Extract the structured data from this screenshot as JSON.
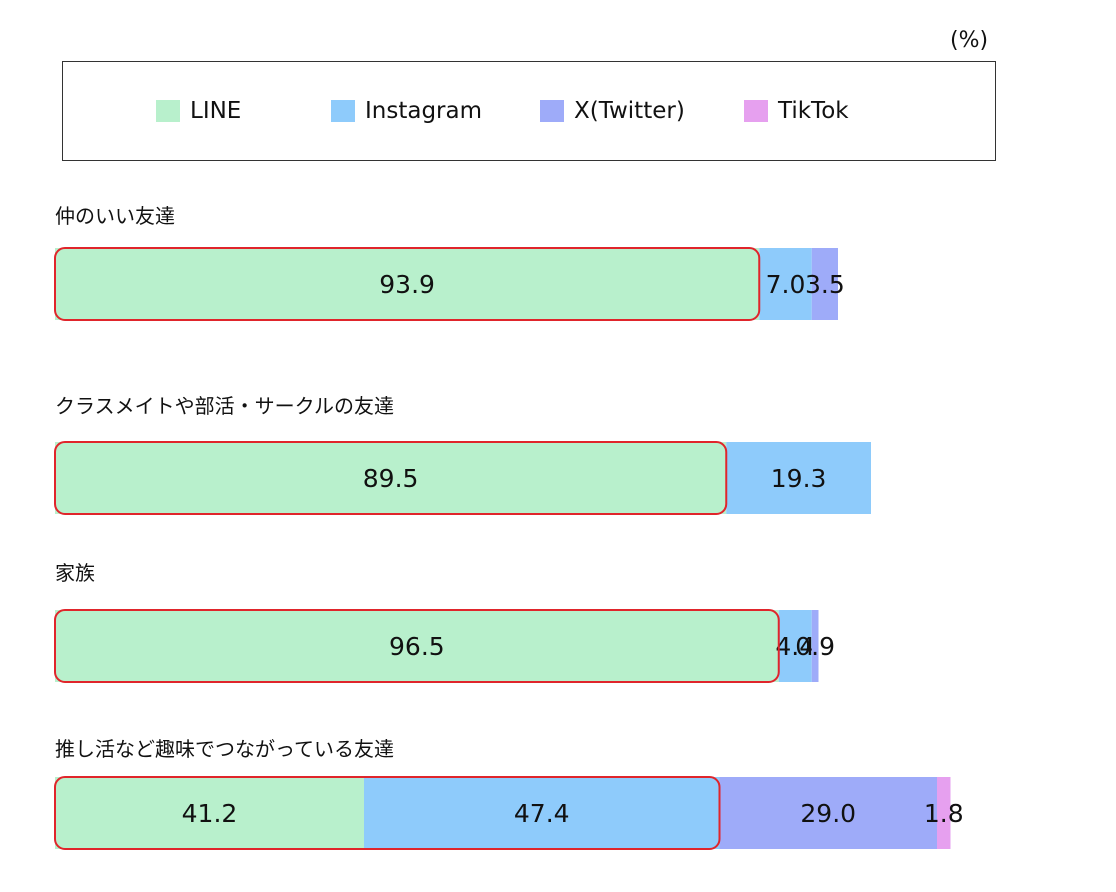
{
  "unit_label": "(%)",
  "chart_data": {
    "type": "bar",
    "orientation": "horizontal",
    "stacked": true,
    "legend_position": "top",
    "series": [
      {
        "name": "LINE",
        "color": "#b8f0cc",
        "values": [
          93.9,
          89.5,
          96.5,
          41.2
        ]
      },
      {
        "name": "Instagram",
        "color": "#8ecbfb",
        "values": [
          7.0,
          19.3,
          4.4,
          47.4
        ]
      },
      {
        "name": "X(Twitter)",
        "color": "#9eabf9",
        "values": [
          3.5,
          null,
          0.9,
          29.0
        ]
      },
      {
        "name": "TikTok",
        "color": "#e6a0ef",
        "values": [
          null,
          null,
          null,
          1.8
        ]
      }
    ],
    "value_labels": [
      [
        "93.9",
        "7.0",
        "3.5",
        ""
      ],
      [
        "89.5",
        "19.3",
        "",
        ""
      ],
      [
        "96.5",
        "4.4",
        "0.9",
        ""
      ],
      [
        "41.2",
        "47.4",
        "29.0",
        "1.8"
      ]
    ],
    "categories": [
      "仲のいい友達",
      "クラスメイトや部活・サークルの友達",
      "家族",
      "推し活など趣味でつながっている友達"
    ],
    "highlight_color": "#e0252b"
  }
}
